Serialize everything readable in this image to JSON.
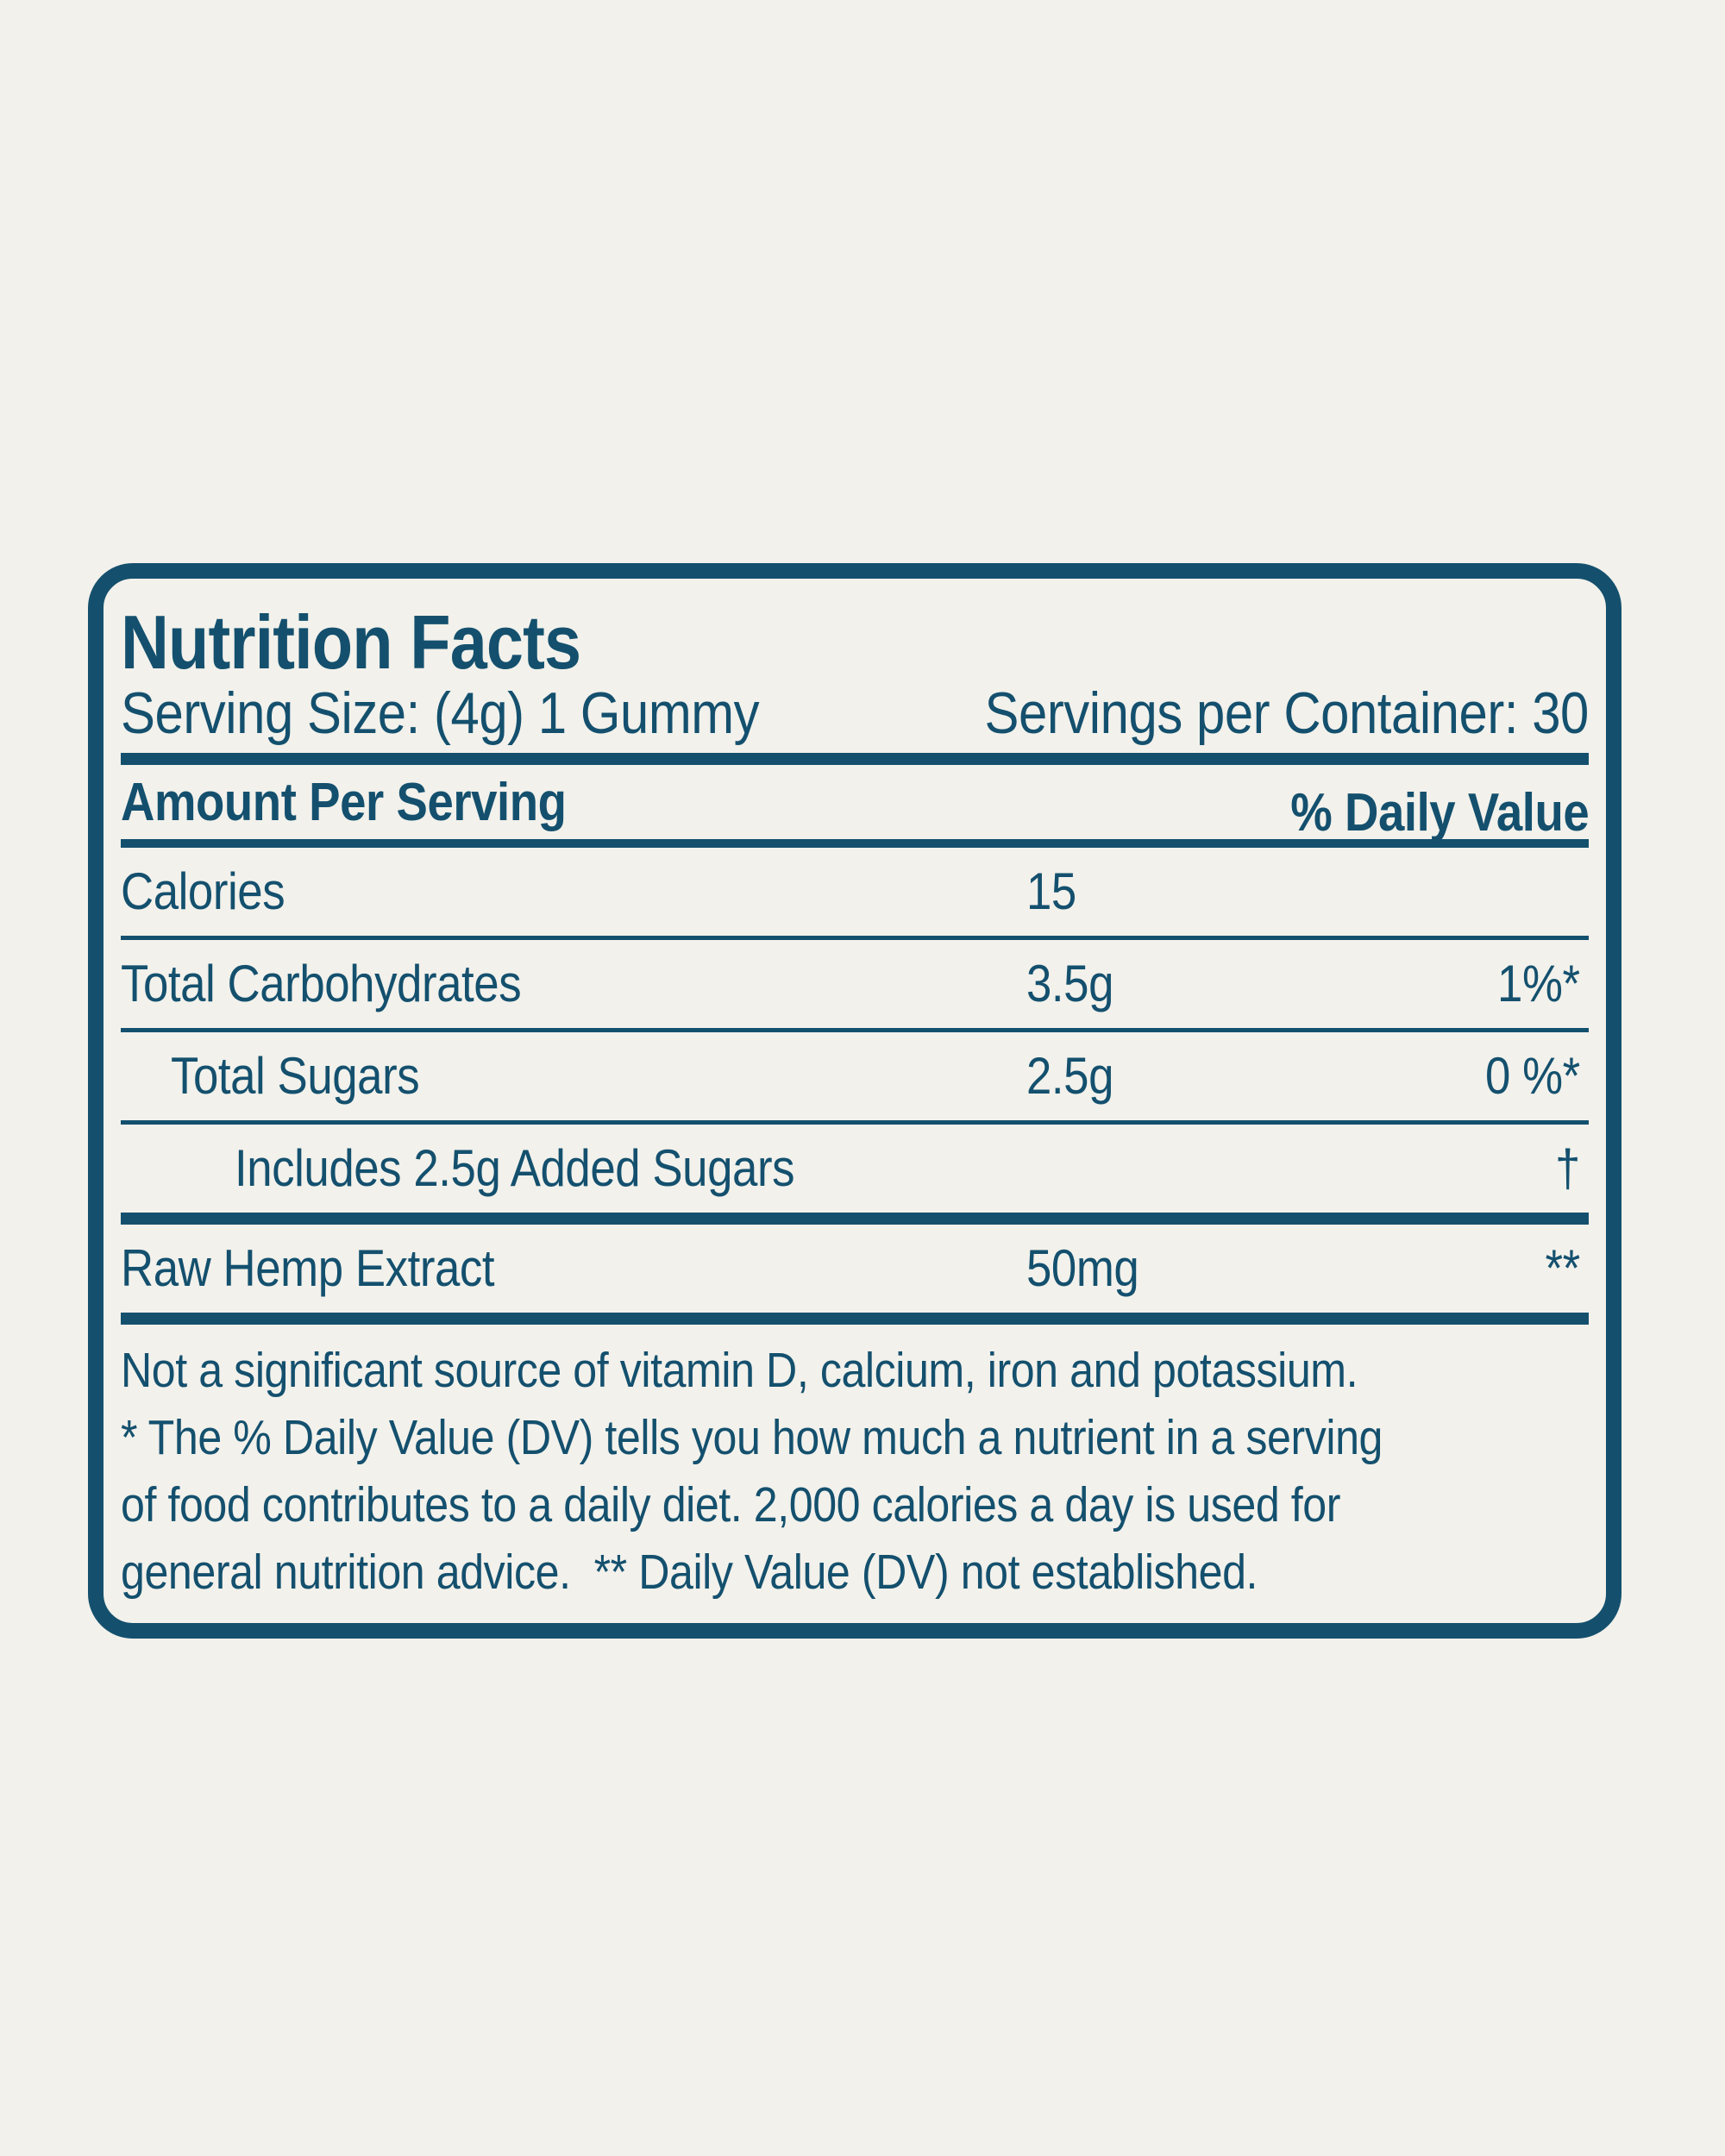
{
  "label": {
    "title": "Nutrition Facts",
    "serving_size": "Serving Size: (4g) 1 Gummy",
    "servings_per_container": "Servings per Container: 30",
    "amount_per_serving": "Amount Per Serving",
    "daily_value_header": "% Daily Value",
    "rows": [
      {
        "name": "Calories",
        "amount": "15",
        "dv": ""
      },
      {
        "name": "Total Carbohydrates",
        "amount": "3.5g",
        "dv": "1%*"
      },
      {
        "name": "Total Sugars",
        "amount": "2.5g",
        "dv": "0 %*"
      },
      {
        "name": "Includes 2.5g Added Sugars",
        "amount": "",
        "dv": "†"
      },
      {
        "name": "Raw Hemp Extract",
        "amount": "50mg",
        "dv": "**"
      }
    ],
    "footnote_lines": [
      "Not a significant source of vitamin D, calcium, iron and potassium.",
      "* The % Daily Value (DV) tells you how much a nutrient in a serving",
      "of food contributes to a daily diet. 2,000 calories a day is used for",
      "general nutrition advice.  ** Daily Value (DV) not established."
    ]
  },
  "colors": {
    "ink": "#14506E",
    "background": "#F2F1EB"
  }
}
